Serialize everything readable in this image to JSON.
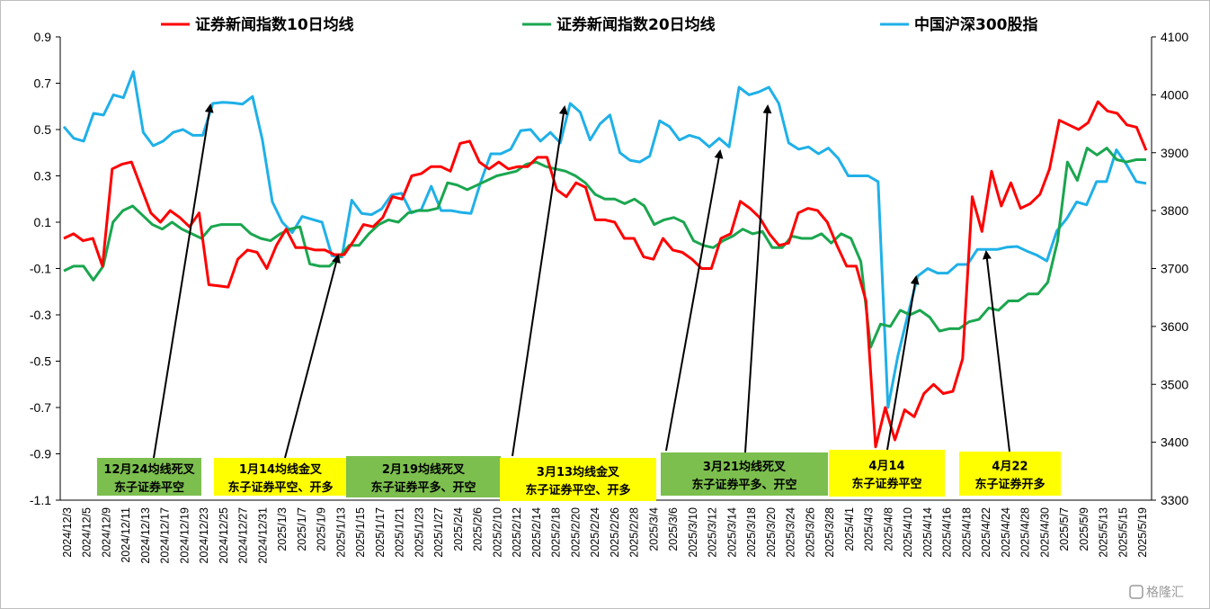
{
  "chart_data": {
    "type": "line",
    "y_left": {
      "range": [
        -1.1,
        0.9
      ],
      "ticks": [
        "0.9",
        "0.7",
        "0.5",
        "0.3",
        "0.1",
        "-0.1",
        "-0.3",
        "-0.5",
        "-0.7",
        "-0.9",
        "-1.1"
      ]
    },
    "y_right": {
      "range": [
        3300,
        4100
      ],
      "ticks": [
        "4100",
        "4000",
        "3900",
        "3800",
        "3700",
        "3600",
        "3500",
        "3400",
        "3300"
      ]
    },
    "x_labels": [
      "2024/12/3",
      "2024/12/5",
      "2024/12/9",
      "2024/12/11",
      "2024/12/13",
      "2024/12/17",
      "2024/12/19",
      "2024/12/23",
      "2024/12/25",
      "2024/12/27",
      "2024/12/31",
      "2025/1/3",
      "2025/1/7",
      "2025/1/9",
      "2025/1/13",
      "2025/1/15",
      "2025/1/17",
      "2025/1/21",
      "2025/1/23",
      "2025/1/27",
      "2025/2/4",
      "2025/2/6",
      "2025/2/10",
      "2025/2/12",
      "2025/2/14",
      "2025/2/18",
      "2025/2/20",
      "2025/2/24",
      "2025/2/26",
      "2025/2/28",
      "2025/3/4",
      "2025/3/6",
      "2025/3/10",
      "2025/3/12",
      "2025/3/14",
      "2025/3/18",
      "2025/3/20",
      "2025/3/24",
      "2025/3/26",
      "2025/3/28",
      "2025/4/1",
      "2025/4/3",
      "2025/4/8",
      "2025/4/10",
      "2025/4/14",
      "2025/4/16",
      "2025/4/18",
      "2025/4/22",
      "2025/4/24",
      "2025/4/28",
      "2025/4/30",
      "2025/5/7",
      "2025/5/9",
      "2025/5/13",
      "2025/5/15",
      "2025/5/19"
    ],
    "series": [
      {
        "name": "证券新闻指数10日均线",
        "color": "#ff0000",
        "axis": "left",
        "values": [
          0.03,
          0.05,
          0.02,
          0.03,
          -0.09,
          0.33,
          0.35,
          0.36,
          0.25,
          0.14,
          0.1,
          0.15,
          0.12,
          0.08,
          0.14,
          -0.17,
          -0.175,
          -0.18,
          -0.06,
          -0.02,
          -0.03,
          -0.1,
          0.0,
          0.07,
          -0.01,
          -0.01,
          -0.02,
          -0.02,
          -0.04,
          -0.04,
          0.02,
          0.09,
          0.08,
          0.12,
          0.21,
          0.2,
          0.3,
          0.31,
          0.34,
          0.34,
          0.32,
          0.44,
          0.45,
          0.36,
          0.33,
          0.36,
          0.33,
          0.34,
          0.34,
          0.38,
          0.38,
          0.24,
          0.21,
          0.27,
          0.25,
          0.11,
          0.11,
          0.1,
          0.03,
          0.03,
          -0.05,
          -0.06,
          0.03,
          -0.02,
          -0.03,
          -0.06,
          -0.1,
          -0.1,
          0.03,
          0.05,
          0.19,
          0.16,
          0.12,
          0.05,
          0.0,
          0.01,
          0.14,
          0.16,
          0.15,
          0.1,
          0.0,
          -0.09,
          -0.09,
          -0.24,
          -0.87,
          -0.7,
          -0.84,
          -0.71,
          -0.74,
          -0.64,
          -0.6,
          -0.64,
          -0.63,
          -0.49,
          0.21,
          0.06,
          0.32,
          0.17,
          0.27,
          0.16,
          0.18,
          0.22,
          0.33,
          0.54,
          0.52,
          0.5,
          0.53,
          0.62,
          0.58,
          0.57,
          0.52,
          0.51,
          0.41
        ]
      },
      {
        "name": "证券新闻指数20日均线",
        "color": "#1aa64f",
        "axis": "left",
        "values": [
          -0.11,
          -0.09,
          -0.09,
          -0.15,
          -0.09,
          0.1,
          0.15,
          0.17,
          0.13,
          0.09,
          0.07,
          0.1,
          0.07,
          0.05,
          0.03,
          0.08,
          0.09,
          0.09,
          0.09,
          0.05,
          0.03,
          0.02,
          0.05,
          0.07,
          0.08,
          -0.08,
          -0.09,
          -0.09,
          -0.05,
          0.0,
          0.0,
          0.05,
          0.09,
          0.11,
          0.1,
          0.14,
          0.15,
          0.15,
          0.16,
          0.27,
          0.26,
          0.24,
          0.26,
          0.28,
          0.3,
          0.31,
          0.32,
          0.35,
          0.36,
          0.34,
          0.33,
          0.32,
          0.3,
          0.27,
          0.22,
          0.2,
          0.2,
          0.18,
          0.2,
          0.17,
          0.09,
          0.11,
          0.12,
          0.1,
          0.02,
          0.0,
          -0.01,
          0.02,
          0.04,
          0.07,
          0.05,
          0.06,
          -0.01,
          -0.01,
          0.04,
          0.03,
          0.03,
          0.05,
          0.01,
          0.05,
          0.03,
          -0.07,
          -0.44,
          -0.34,
          -0.35,
          -0.28,
          -0.3,
          -0.28,
          -0.31,
          -0.37,
          -0.36,
          -0.36,
          -0.33,
          -0.32,
          -0.27,
          -0.28,
          -0.24,
          -0.24,
          -0.21,
          -0.21,
          -0.16,
          0.02,
          0.36,
          0.28,
          0.42,
          0.39,
          0.42,
          0.37,
          0.36,
          0.37,
          0.37
        ]
      },
      {
        "name": "中国沪深300股指",
        "color": "#1fb0e8",
        "axis": "right",
        "values": [
          3945,
          3925,
          3920,
          3968,
          3965,
          4000,
          3995,
          4040,
          3935,
          3912,
          3920,
          3935,
          3940,
          3930,
          3930,
          3985,
          3987,
          3986,
          3984,
          3997,
          3922,
          3815,
          3780,
          3762,
          3790,
          3785,
          3780,
          3722,
          3720,
          3818,
          3795,
          3793,
          3803,
          3827,
          3830,
          3796,
          3802,
          3842,
          3800,
          3800,
          3797,
          3795,
          3850,
          3898,
          3898,
          3906,
          3938,
          3940,
          3920,
          3935,
          3917,
          3985,
          3970,
          3922,
          3950,
          3965,
          3900,
          3887,
          3884,
          3894,
          3955,
          3945,
          3922,
          3930,
          3925,
          3910,
          3925,
          3910,
          4013,
          4000,
          4005,
          4013,
          3985,
          3917,
          3906,
          3910,
          3898,
          3908,
          3890,
          3860,
          3860,
          3860,
          3850,
          3460,
          3550,
          3620,
          3687,
          3700,
          3692,
          3692,
          3707,
          3707,
          3733,
          3733,
          3733,
          3737,
          3738,
          3730,
          3723,
          3713,
          3765,
          3786,
          3815,
          3810,
          3850,
          3850,
          3905,
          3880,
          3850,
          3847
        ]
      }
    ],
    "annotations": [
      {
        "line1": "12月24均线死叉",
        "line2": "东子证券平空",
        "box_color": "#7cbf4e"
      },
      {
        "line1": "1月14均线金叉",
        "line2": "东子证券平空、开多",
        "box_color": "#ffff00"
      },
      {
        "line1": "2月19均线死叉",
        "line2": "东子证券平多、开空",
        "box_color": "#7cbf4e"
      },
      {
        "line1": "3月13均线金叉",
        "line2": "东子证券平空、开多",
        "box_color": "#ffff00"
      },
      {
        "line1": "3月21均线死叉",
        "line2": "东子证券平多、开空",
        "box_color": "#7cbf4e"
      },
      {
        "line1": "4月14",
        "line2": "东子证券平空",
        "box_color": "#ffff00"
      },
      {
        "line1": "4月22",
        "line2": "东子证券开多",
        "box_color": "#ffff00"
      }
    ],
    "legend_placement": "top",
    "grid": false
  },
  "watermark": "格隆汇"
}
